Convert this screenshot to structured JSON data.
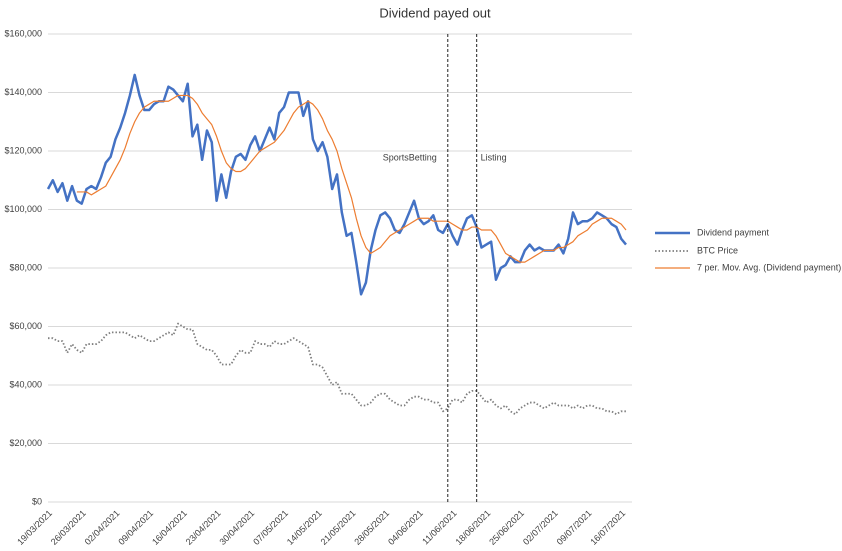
{
  "chart_data": {
    "type": "line",
    "title": "Dividend payed out",
    "categories": [
      "19/03/2021",
      null,
      null,
      null,
      null,
      null,
      null,
      "26/03/2021",
      null,
      null,
      null,
      null,
      null,
      null,
      "02/04/2021",
      null,
      null,
      null,
      null,
      null,
      null,
      "09/04/2021",
      null,
      null,
      null,
      null,
      null,
      null,
      "16/04/2021",
      null,
      null,
      null,
      null,
      null,
      null,
      "23/04/2021",
      null,
      null,
      null,
      null,
      null,
      null,
      "30/04/2021",
      null,
      null,
      null,
      null,
      null,
      null,
      "07/05/2021",
      null,
      null,
      null,
      null,
      null,
      null,
      "14/05/2021",
      null,
      null,
      null,
      null,
      null,
      null,
      "21/05/2021",
      null,
      null,
      null,
      null,
      null,
      null,
      "28/05/2021",
      null,
      null,
      null,
      null,
      null,
      null,
      "04/06/2021",
      null,
      null,
      null,
      null,
      null,
      null,
      "11/06/2021",
      null,
      null,
      null,
      null,
      null,
      null,
      "18/06/2021",
      null,
      null,
      null,
      null,
      null,
      null,
      "25/06/2021",
      null,
      null,
      null,
      null,
      null,
      null,
      "02/07/2021",
      null,
      null,
      null,
      null,
      null,
      null,
      "09/07/2021",
      null,
      null,
      null,
      null,
      null,
      null,
      "16/07/2021",
      null
    ],
    "series": [
      {
        "name": "Dividend payment",
        "color": "#4472c4",
        "width": 2.5,
        "values": [
          107000,
          110000,
          106000,
          109000,
          103000,
          108000,
          103000,
          102000,
          107000,
          108000,
          107000,
          111000,
          116000,
          118000,
          124000,
          128000,
          133000,
          139000,
          146000,
          139000,
          134000,
          134000,
          136000,
          137000,
          137000,
          142000,
          141000,
          139000,
          137000,
          143000,
          125000,
          129000,
          117000,
          127000,
          123000,
          103000,
          112000,
          104000,
          113000,
          118000,
          119000,
          117000,
          122000,
          125000,
          120000,
          124000,
          128000,
          124000,
          133000,
          135000,
          140000,
          140000,
          140000,
          132000,
          137000,
          124000,
          120000,
          123000,
          118000,
          107000,
          112000,
          99000,
          91000,
          92000,
          82000,
          71000,
          75000,
          86000,
          93000,
          98000,
          99000,
          97000,
          93000,
          92000,
          95000,
          99000,
          103000,
          97000,
          95000,
          96000,
          98000,
          93000,
          92000,
          95000,
          91000,
          88000,
          93000,
          97000,
          98000,
          94000,
          87000,
          88000,
          89000,
          76000,
          80000,
          81000,
          84000,
          82000,
          82000,
          86000,
          88000,
          86000,
          87000,
          86000,
          86000,
          86000,
          88000,
          85000,
          90000,
          99000,
          95000,
          96000,
          96000,
          97000,
          99000,
          98000,
          97000,
          95000,
          94000,
          90000,
          88000
        ]
      },
      {
        "name": "BTC Price",
        "color": "#7f7f7f",
        "width": 1.8,
        "dash": "dotted",
        "values": [
          56000,
          56000,
          55000,
          55000,
          51000,
          54000,
          52000,
          51000,
          54000,
          54000,
          54000,
          55000,
          57000,
          58000,
          58000,
          58000,
          58000,
          57000,
          56000,
          57000,
          56000,
          55000,
          55000,
          56000,
          57000,
          58000,
          57000,
          61000,
          60000,
          59000,
          59000,
          54000,
          53000,
          52000,
          52000,
          50000,
          47000,
          47000,
          47000,
          50000,
          52000,
          51000,
          51000,
          55000,
          54000,
          54000,
          53000,
          55000,
          54000,
          54000,
          55000,
          56000,
          55000,
          54000,
          53000,
          47000,
          47000,
          46000,
          43000,
          40000,
          41000,
          37000,
          37000,
          37000,
          35000,
          33000,
          33000,
          34000,
          36000,
          37000,
          37000,
          35000,
          34000,
          33000,
          33000,
          35000,
          36000,
          36000,
          35000,
          35000,
          34000,
          34000,
          31000,
          32000,
          35000,
          35000,
          34000,
          37000,
          38000,
          38000,
          36000,
          34000,
          35000,
          33000,
          32000,
          33000,
          31000,
          30000,
          32000,
          33000,
          34000,
          34000,
          33000,
          32000,
          33000,
          34000,
          33000,
          33000,
          33000,
          32000,
          33000,
          32000,
          33000,
          33000,
          32000,
          32000,
          31000,
          31000,
          30000,
          31000,
          31000
        ]
      },
      {
        "name": "7 per. Mov. Avg. (Dividend payment)",
        "color": "#ed7d31",
        "width": 1.2,
        "values": [
          null,
          null,
          null,
          null,
          null,
          null,
          106000,
          106000,
          106000,
          105000,
          106000,
          107000,
          108000,
          111000,
          114000,
          117000,
          121000,
          126000,
          130000,
          133000,
          135000,
          136000,
          137000,
          137000,
          137000,
          137000,
          138000,
          139000,
          139000,
          139000,
          138000,
          136000,
          133000,
          131000,
          129000,
          125000,
          120000,
          116000,
          114000,
          113000,
          113000,
          114000,
          116000,
          118000,
          120000,
          121000,
          122000,
          123000,
          125000,
          127000,
          130000,
          133000,
          135000,
          136000,
          137000,
          136000,
          134000,
          131000,
          127000,
          124000,
          120000,
          114000,
          109000,
          104000,
          97000,
          91000,
          87000,
          85000,
          86000,
          87000,
          89000,
          91000,
          92000,
          93000,
          94000,
          95000,
          96000,
          97000,
          97000,
          97000,
          96000,
          96000,
          96000,
          96000,
          95000,
          94000,
          93000,
          93000,
          94000,
          94000,
          93000,
          93000,
          93000,
          91000,
          88000,
          85000,
          84000,
          83000,
          82000,
          82000,
          83000,
          84000,
          85000,
          86000,
          86000,
          86000,
          87000,
          87000,
          88000,
          89000,
          91000,
          92000,
          93000,
          95000,
          96000,
          97000,
          97000,
          97000,
          96000,
          95000,
          93000
        ]
      }
    ],
    "ylim": [
      0,
      160000
    ],
    "yticks": [
      {
        "value": 0,
        "label": "$0"
      },
      {
        "value": 20000,
        "label": "$20,000"
      },
      {
        "value": 40000,
        "label": "$40,000"
      },
      {
        "value": 60000,
        "label": "$60,000"
      },
      {
        "value": 80000,
        "label": "$80,000"
      },
      {
        "value": 100000,
        "label": "$100,000"
      },
      {
        "value": 120000,
        "label": "$120,000"
      },
      {
        "value": 140000,
        "label": "$140,000"
      },
      {
        "value": 160000,
        "label": "$160,000"
      }
    ],
    "grid": true,
    "legend": "right",
    "vlines": [
      {
        "x": "10/06/2021",
        "label": "SportsBetting"
      },
      {
        "x": "16/06/2021",
        "label": "Listing"
      }
    ]
  }
}
